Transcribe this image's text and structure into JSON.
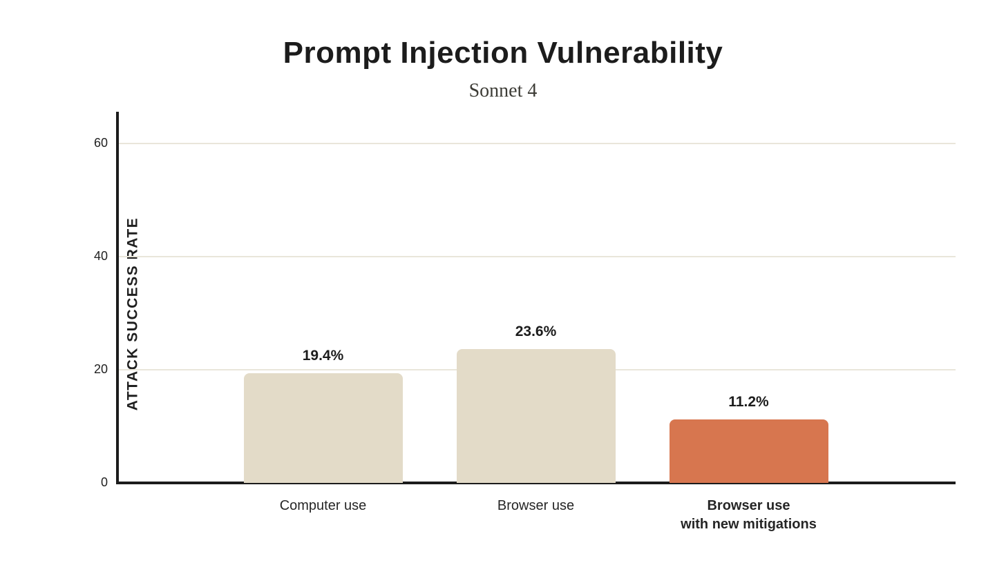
{
  "chart_data": {
    "type": "bar",
    "title": "Prompt Injection Vulnerability",
    "subtitle": "Sonnet 4",
    "xlabel": "",
    "ylabel": "ATTACK SUCCESS RATE",
    "ylim": [
      0,
      65
    ],
    "yticks": [
      0,
      20,
      40,
      60
    ],
    "grid": "horizontal",
    "legend": "none",
    "categories": [
      "Computer use",
      "Browser use",
      "Browser use\nwith new mitigations"
    ],
    "values": [
      19.4,
      23.6,
      11.2
    ],
    "value_labels": [
      "19.4%",
      "23.6%",
      "11.2%"
    ],
    "bar_colors": [
      "#e3dbc8",
      "#e3dbc8",
      "#d7764f"
    ],
    "emphasized_category_index": 2
  },
  "colors": {
    "background": "#ffffff",
    "axis": "#1c1c1c",
    "gridline": "#e9e6da",
    "title_text": "#1c1c1c",
    "subtitle_text": "#3d3c36",
    "label_text": "#262626",
    "bar_beige": "#e3dbc8",
    "bar_orange": "#d7764f"
  }
}
